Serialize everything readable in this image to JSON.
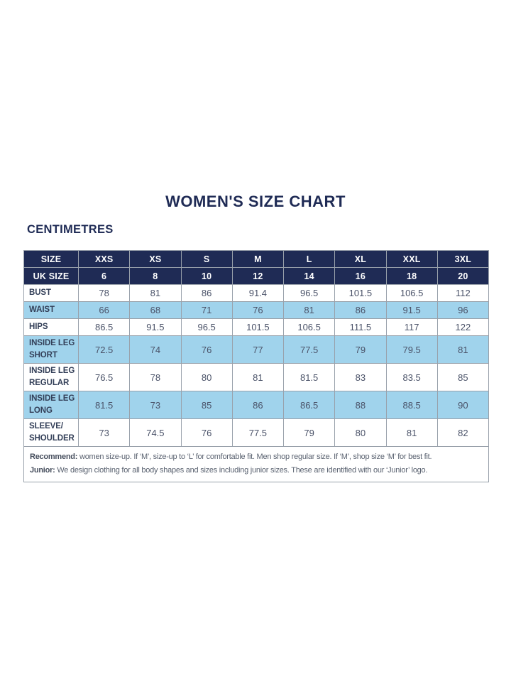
{
  "colors": {
    "navy": "#1F2B55",
    "light_blue": "#A0D3EC",
    "border_grey": "#99A1AB",
    "body_text": "#4A5268",
    "label_text": "#333F58",
    "note_text": "#5A6270"
  },
  "chart_data": {
    "type": "table",
    "title": "WOMEN'S SIZE CHART",
    "unit_label": "CENTIMETRES",
    "header_rows": [
      {
        "label": "SIZE",
        "values": [
          "XXS",
          "XS",
          "S",
          "M",
          "L",
          "XL",
          "XXL",
          "3XL"
        ]
      },
      {
        "label": "UK SIZE",
        "values": [
          "6",
          "8",
          "10",
          "12",
          "14",
          "16",
          "18",
          "20"
        ]
      }
    ],
    "rows": [
      {
        "label": "BUST",
        "shaded": false,
        "values": [
          78,
          81,
          86,
          91.4,
          96.5,
          101.5,
          106.5,
          112
        ]
      },
      {
        "label": "WAIST",
        "shaded": true,
        "values": [
          66,
          68,
          71,
          76,
          81,
          86,
          91.5,
          96
        ]
      },
      {
        "label": "HIPS",
        "shaded": false,
        "values": [
          86.5,
          91.5,
          96.5,
          101.5,
          106.5,
          111.5,
          117,
          122
        ]
      },
      {
        "label": "INSIDE LEG\nSHORT",
        "shaded": true,
        "values": [
          72.5,
          74,
          76,
          77,
          77.5,
          79,
          79.5,
          81
        ]
      },
      {
        "label": "INSIDE LEG\nREGULAR",
        "shaded": false,
        "values": [
          76.5,
          78,
          80,
          81,
          81.5,
          83,
          83.5,
          85
        ]
      },
      {
        "label": "INSIDE LEG\nLONG",
        "shaded": true,
        "values": [
          81.5,
          73,
          85,
          86,
          86.5,
          88,
          88.5,
          90
        ]
      },
      {
        "label": "SLEEVE/\nSHOULDER",
        "shaded": false,
        "values": [
          73,
          74.5,
          76,
          77.5,
          79,
          80,
          81,
          82
        ]
      }
    ],
    "notes": [
      {
        "label": "Recommend:",
        "text": "women size-up. If ‘M’, size-up to ‘L’ for comfortable fit. Men shop regular size. If ‘M’, shop size ‘M’ for best fit."
      },
      {
        "label": "Junior:",
        "text": "We design clothing for all body shapes and sizes including junior sizes. These are identified with our ‘Junior’ logo."
      }
    ]
  }
}
